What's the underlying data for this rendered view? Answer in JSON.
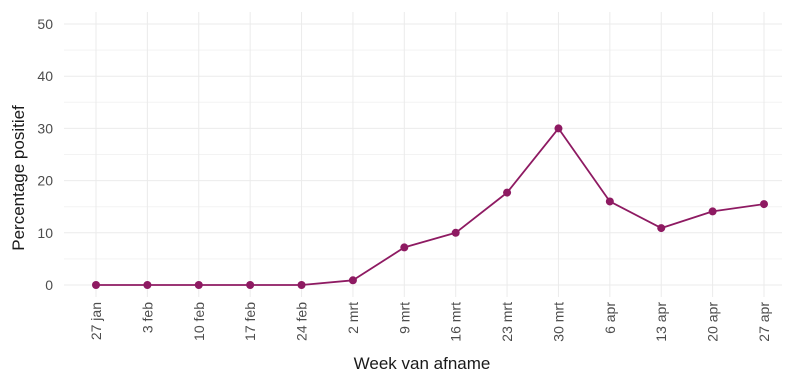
{
  "chart_data": {
    "type": "line",
    "title": "",
    "xlabel": "Week van afname",
    "ylabel": "Percentage positief",
    "categories": [
      "27 jan",
      "3 feb",
      "10 feb",
      "17 feb",
      "24 feb",
      "2 mrt",
      "9 mrt",
      "16 mrt",
      "23 mrt",
      "30 mrt",
      "6 apr",
      "13 apr",
      "20 apr",
      "27 apr"
    ],
    "series": [
      {
        "values": [
          0,
          0,
          0,
          0,
          0,
          0.9,
          7.2,
          10,
          17.7,
          30,
          16,
          10.9,
          14.1,
          15.5
        ],
        "color": "#8e1a62"
      }
    ],
    "ylim": [
      0,
      50
    ],
    "yticks": [
      0,
      10,
      20,
      30,
      40,
      50
    ],
    "grid": true,
    "legend": "none"
  }
}
